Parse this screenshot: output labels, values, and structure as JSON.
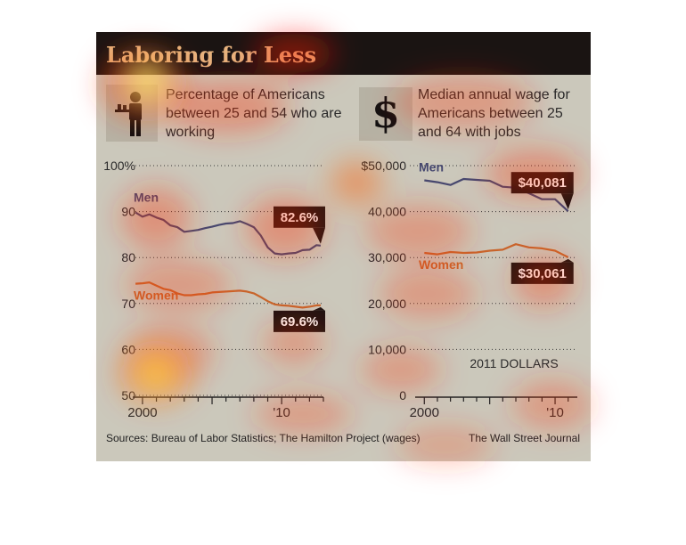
{
  "title": "Laboring for Less",
  "footer": {
    "sources": "Sources: Bureau of Labor Statistics; The Hamilton Project (wages)",
    "publisher": "The Wall Street Journal"
  },
  "icons": {
    "left": "waiter-icon",
    "right": "dollar-sign-icon",
    "dollar_glyph": "$"
  },
  "colors": {
    "men": "#46486f",
    "women": "#c8652b",
    "title": "#e7b47e",
    "callout_bg": "#1e1412"
  },
  "chart_data": [
    {
      "type": "line",
      "title": "Percentage of Americans between 25 and 54 who are working",
      "xlim": [
        1999.3,
        2013.0
      ],
      "ylim": [
        50,
        100
      ],
      "y_ticks": [
        {
          "value": 100,
          "label": "100%"
        },
        {
          "value": 90,
          "label": "90"
        },
        {
          "value": 80,
          "label": "80"
        },
        {
          "value": 70,
          "label": "70"
        },
        {
          "value": 60,
          "label": "60"
        },
        {
          "value": 50,
          "label": "50"
        }
      ],
      "x_labels": [
        {
          "value": 2000,
          "label": "2000"
        },
        {
          "value": 2010,
          "label": "'10"
        }
      ],
      "series": [
        {
          "name": "Men",
          "callout": "82.6%",
          "x": [
            1999.5,
            2000.0,
            2000.5,
            2001.0,
            2001.5,
            2002.0,
            2002.5,
            2003.0,
            2003.5,
            2004.0,
            2004.5,
            2005.0,
            2005.5,
            2006.0,
            2006.5,
            2007.0,
            2007.5,
            2008.0,
            2008.5,
            2009.0,
            2009.5,
            2010.0,
            2010.5,
            2011.0,
            2011.5,
            2012.0,
            2012.5,
            2012.8
          ],
          "y": [
            89.8,
            88.9,
            89.4,
            88.7,
            88.2,
            87.0,
            86.6,
            85.6,
            85.8,
            86.0,
            86.4,
            86.7,
            87.1,
            87.4,
            87.5,
            87.9,
            87.3,
            86.6,
            84.8,
            82.2,
            80.9,
            80.7,
            80.9,
            81.0,
            81.6,
            81.7,
            82.7,
            82.6
          ]
        },
        {
          "name": "Women",
          "callout": "69.6%",
          "x": [
            1999.5,
            2000.0,
            2000.5,
            2001.0,
            2001.5,
            2002.0,
            2002.5,
            2003.0,
            2003.5,
            2004.0,
            2004.5,
            2005.0,
            2005.5,
            2006.0,
            2006.5,
            2007.0,
            2007.5,
            2008.0,
            2008.5,
            2009.0,
            2009.5,
            2010.0,
            2010.5,
            2011.0,
            2011.5,
            2012.0,
            2012.5,
            2012.8
          ],
          "y": [
            74.3,
            74.4,
            74.6,
            73.9,
            73.2,
            72.9,
            72.2,
            71.8,
            71.8,
            72.0,
            72.1,
            72.4,
            72.5,
            72.6,
            72.7,
            72.8,
            72.6,
            72.2,
            71.4,
            70.5,
            69.8,
            69.6,
            69.5,
            69.3,
            69.1,
            69.3,
            69.6,
            69.6
          ]
        }
      ]
    },
    {
      "type": "line",
      "title": "Median annual wage for Americans between 25 and 64 with jobs",
      "annotation": "2011 DOLLARS",
      "xlim": [
        1999.3,
        2011.7
      ],
      "ylim": [
        0,
        50000
      ],
      "y_ticks": [
        {
          "value": 50000,
          "label": "$50,000"
        },
        {
          "value": 40000,
          "label": "40,000"
        },
        {
          "value": 30000,
          "label": "30,000"
        },
        {
          "value": 20000,
          "label": "20,000"
        },
        {
          "value": 10000,
          "label": "10,000"
        },
        {
          "value": 0,
          "label": "0"
        }
      ],
      "x_labels": [
        {
          "value": 2000,
          "label": "2000"
        },
        {
          "value": 2010,
          "label": "'10"
        }
      ],
      "series": [
        {
          "name": "Men",
          "callout": "$40,081",
          "x": [
            2000,
            2001,
            2002,
            2003,
            2004,
            2005,
            2006,
            2007,
            2008,
            2009,
            2010,
            2011
          ],
          "y": [
            46800,
            46400,
            45800,
            47100,
            46900,
            46700,
            45400,
            45200,
            44000,
            42700,
            42700,
            40081
          ]
        },
        {
          "name": "Women",
          "callout": "$30,061",
          "x": [
            2000,
            2001,
            2002,
            2003,
            2004,
            2005,
            2006,
            2007,
            2008,
            2009,
            2010,
            2011
          ],
          "y": [
            31000,
            30700,
            31200,
            31000,
            31100,
            31500,
            31700,
            32900,
            32200,
            32000,
            31500,
            30061
          ]
        }
      ]
    }
  ]
}
